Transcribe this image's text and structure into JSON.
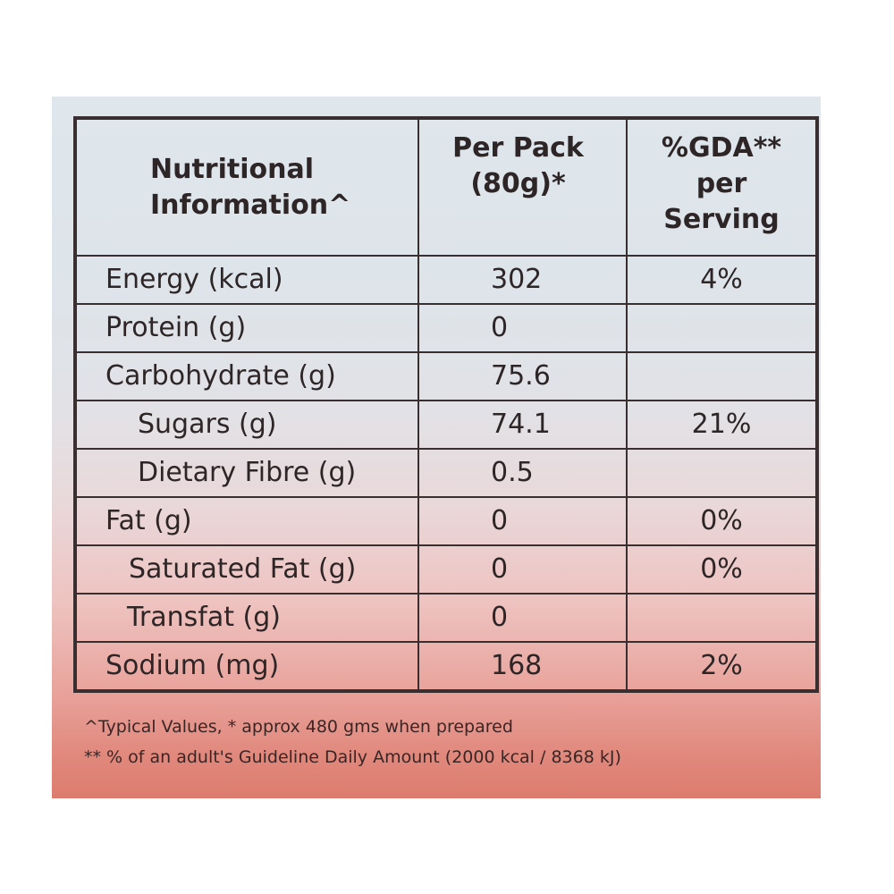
{
  "header": {
    "col_name": [
      "Nutritional",
      "Information^"
    ],
    "col_pack": [
      "Per Pack",
      "(80g)*"
    ],
    "col_gda": [
      "%GDA**",
      "per",
      "Serving"
    ]
  },
  "rows": [
    {
      "name": "Energy (kcal)",
      "per_pack": "302",
      "gda": "4%"
    },
    {
      "name": "Protein (g)",
      "per_pack": "0",
      "gda": ""
    },
    {
      "name": "Carbohydrate (g)",
      "per_pack": "75.6",
      "gda": ""
    },
    {
      "name": "Sugars (g)",
      "per_pack": "74.1",
      "gda": "21%"
    },
    {
      "name": "Dietary Fibre (g)",
      "per_pack": "0.5",
      "gda": ""
    },
    {
      "name": "Fat (g)",
      "per_pack": "0",
      "gda": "0%"
    },
    {
      "name": "Saturated Fat (g)",
      "per_pack": "0",
      "gda": "0%"
    },
    {
      "name": "Transfat (g)",
      "per_pack": "0",
      "gda": ""
    },
    {
      "name": "Sodium (mg)",
      "per_pack": "168",
      "gda": "2%"
    }
  ],
  "footnotes": {
    "line1": "^Typical Values,  * approx 480 gms when prepared",
    "line2": "** % of an adult's Guideline Daily Amount (2000 kcal / 8368 kJ)"
  },
  "colors": {
    "border": "#3a2f30",
    "text": "#2d2526",
    "panel_top": "#dfe6ec",
    "panel_bottom": "#dc7c6e"
  }
}
